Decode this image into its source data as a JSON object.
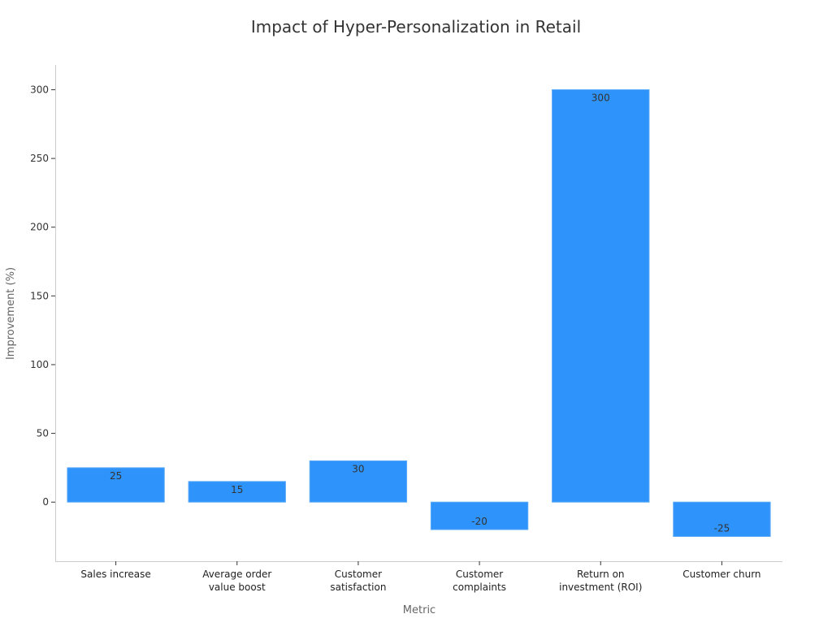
{
  "chart_data": {
    "type": "bar",
    "title": "Impact of Hyper-Personalization in Retail",
    "xlabel": "Metric",
    "ylabel": "Improvement (%)",
    "categories": [
      [
        "Sales increase"
      ],
      [
        "Average order",
        "value boost"
      ],
      [
        "Customer",
        "satisfaction"
      ],
      [
        "Customer",
        "complaints"
      ],
      [
        "Return on",
        "investment (ROI)"
      ],
      [
        "Customer churn"
      ]
    ],
    "values": [
      25,
      15,
      30,
      -20,
      300,
      -25
    ],
    "data_labels": [
      "25",
      "15",
      "30",
      "-20",
      "300",
      "-25"
    ],
    "ylim": [
      -43,
      318
    ],
    "yticks": [
      0,
      50,
      100,
      150,
      200,
      250,
      300
    ],
    "ytick_labels": [
      "0",
      "50",
      "100",
      "150",
      "200",
      "250",
      "300"
    ],
    "grid": false,
    "bar_color": "#2E93FA"
  }
}
